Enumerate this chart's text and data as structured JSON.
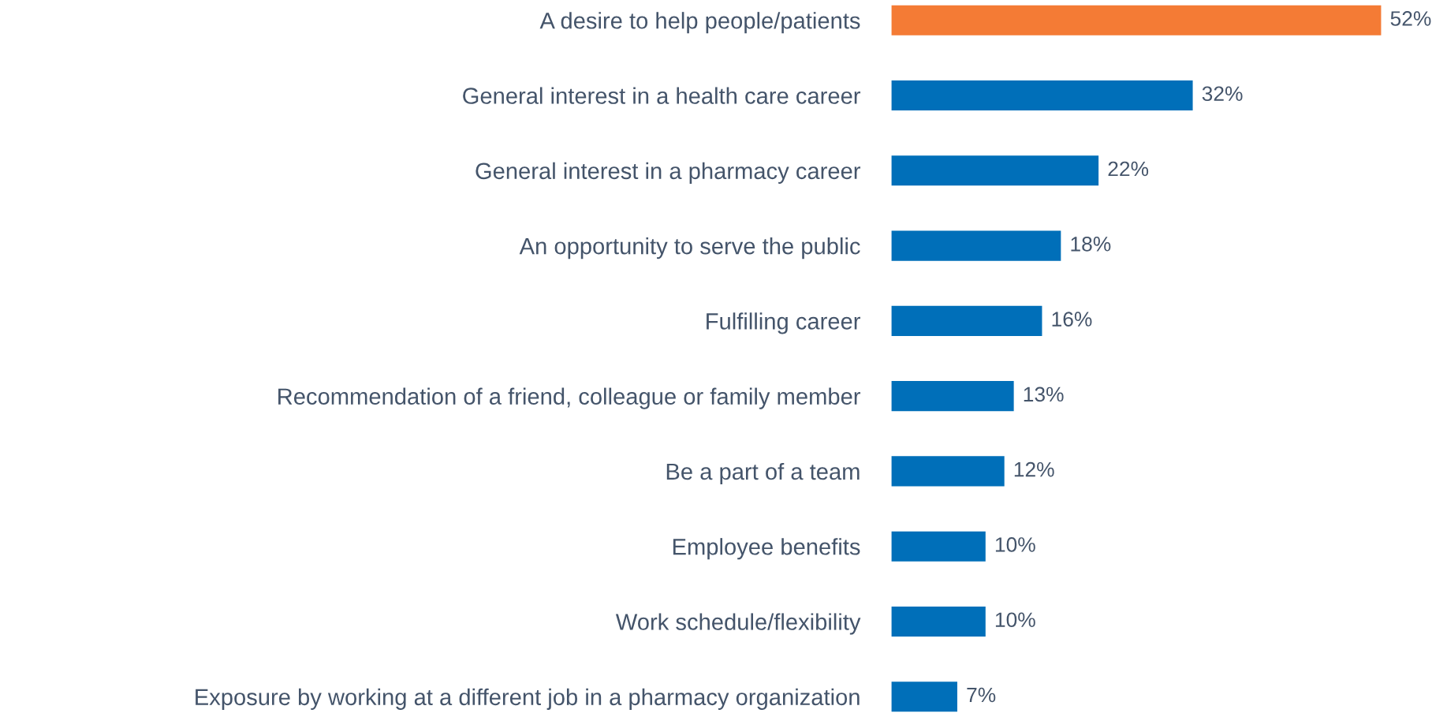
{
  "chart_data": {
    "type": "bar",
    "orientation": "horizontal",
    "categories": [
      "A desire to help people/patients",
      "General interest in a health care career",
      "General interest in a pharmacy career",
      "An opportunity to serve the public",
      "Fulfilling career",
      "Recommendation of a friend, colleague or family member",
      "Be a part of a team",
      "Employee benefits",
      "Work schedule/flexibility",
      "Exposure by working at a different job in a pharmacy organization"
    ],
    "values": [
      52,
      32,
      22,
      18,
      16,
      13,
      12,
      10,
      10,
      7
    ],
    "value_labels": [
      "52%",
      "32%",
      "22%",
      "18%",
      "16%",
      "13%",
      "12%",
      "10%",
      "10%",
      "7%"
    ],
    "colors": [
      "#f47b35",
      "#006fb9",
      "#006fb9",
      "#006fb9",
      "#006fb9",
      "#006fb9",
      "#006fb9",
      "#006fb9",
      "#006fb9",
      "#006fb9"
    ]
  }
}
